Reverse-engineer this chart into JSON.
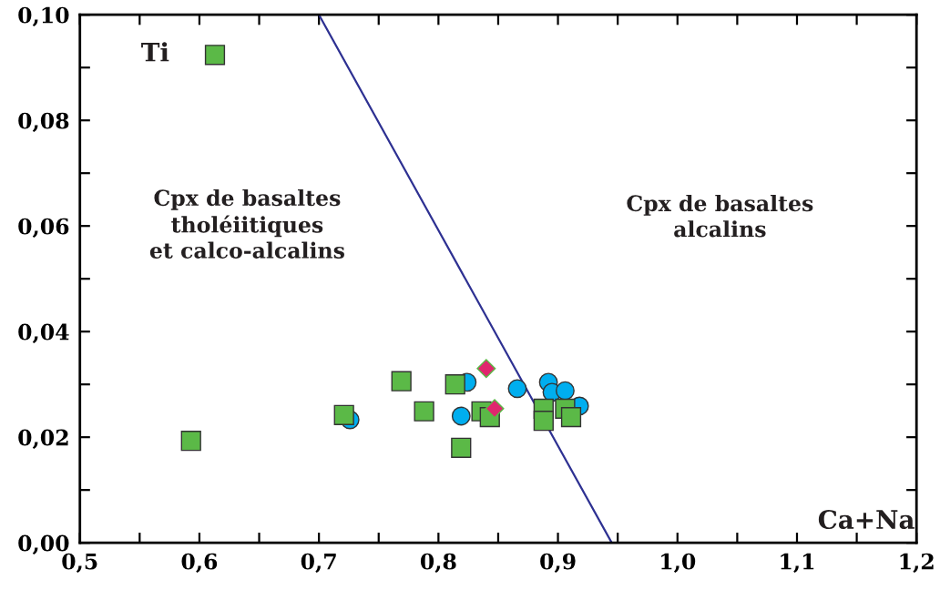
{
  "chart_data": {
    "type": "scatter",
    "xlabel": "Ca+Na",
    "ylabel": "Ti",
    "annotations": [
      "Cpx de basaltes\ntholéiitiques\net calco-alcalins",
      "Cpx de basaltes\nalcalins"
    ],
    "xlim": [
      0.5,
      1.2
    ],
    "ylim": [
      0.0,
      0.1
    ],
    "xticks": [
      {
        "value": 0.5,
        "label": "0,5"
      },
      {
        "value": 0.55,
        "label": null
      },
      {
        "value": 0.6,
        "label": "0,6"
      },
      {
        "value": 0.65,
        "label": null
      },
      {
        "value": 0.7,
        "label": "0,7"
      },
      {
        "value": 0.75,
        "label": null
      },
      {
        "value": 0.8,
        "label": "0,8"
      },
      {
        "value": 0.85,
        "label": null
      },
      {
        "value": 0.9,
        "label": "0,9"
      },
      {
        "value": 0.95,
        "label": null
      },
      {
        "value": 1.0,
        "label": "1,0"
      },
      {
        "value": 1.05,
        "label": null
      },
      {
        "value": 1.1,
        "label": "1,1"
      },
      {
        "value": 1.15,
        "label": null
      },
      {
        "value": 1.2,
        "label": "1,2"
      }
    ],
    "yticks": [
      {
        "value": 0.0,
        "label": "0,00"
      },
      {
        "value": 0.01,
        "label": null
      },
      {
        "value": 0.02,
        "label": "0,02"
      },
      {
        "value": 0.03,
        "label": null
      },
      {
        "value": 0.04,
        "label": "0,04"
      },
      {
        "value": 0.05,
        "label": null
      },
      {
        "value": 0.06,
        "label": "0,06"
      },
      {
        "value": 0.07,
        "label": null
      },
      {
        "value": 0.08,
        "label": "0,08"
      },
      {
        "value": 0.09,
        "label": null
      },
      {
        "value": 0.1,
        "label": "0,10"
      }
    ],
    "grid": false,
    "series": [
      {
        "type": "line",
        "color": "#2e3192",
        "marker": "none",
        "line_style": "solid",
        "x": [
          0.7,
          0.945
        ],
        "values": [
          0.1,
          0.0
        ]
      },
      {
        "color": "#5bb947",
        "marker": "square",
        "x": [
          0.613,
          0.593,
          0.721,
          0.769,
          0.788,
          0.814,
          0.819,
          0.836,
          0.843,
          0.888,
          0.888,
          0.906,
          0.911
        ],
        "values": [
          0.0924,
          0.0193,
          0.0242,
          0.0306,
          0.0249,
          0.03,
          0.018,
          0.0249,
          0.0238,
          0.0254,
          0.0231,
          0.0254,
          0.0238
        ]
      },
      {
        "color": "#00aeef",
        "marker": "circle",
        "x": [
          0.726,
          0.824,
          0.819,
          0.866,
          0.892,
          0.895,
          0.906,
          0.918
        ],
        "values": [
          0.0233,
          0.0304,
          0.024,
          0.0292,
          0.0304,
          0.0285,
          0.0288,
          0.0259
        ]
      },
      {
        "color": "#e0266e",
        "marker": "diamond",
        "x": [
          0.84,
          0.847
        ],
        "values": [
          0.033,
          0.0254
        ]
      }
    ]
  }
}
